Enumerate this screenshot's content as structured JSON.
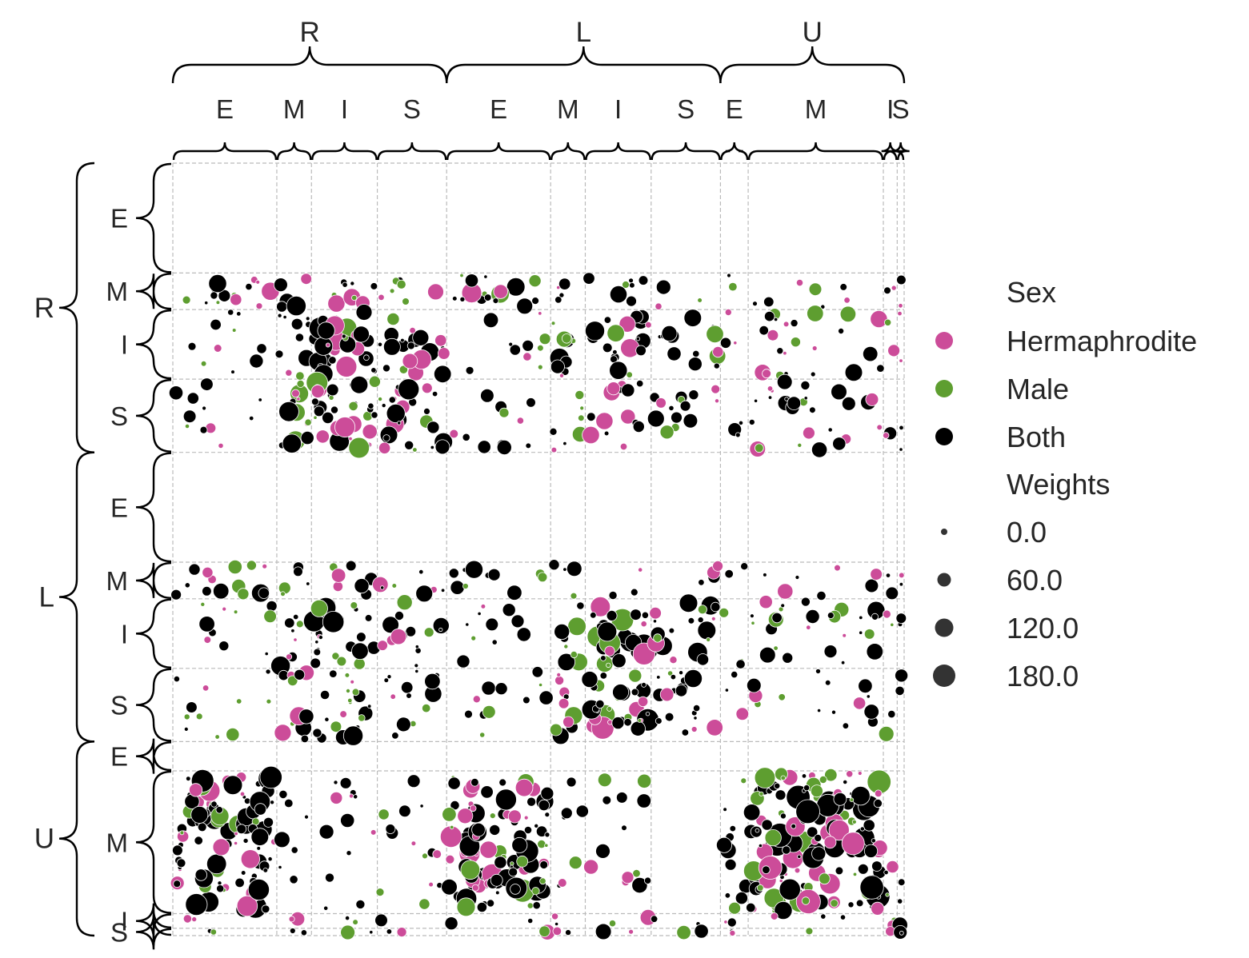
{
  "chart_data": {
    "type": "scatter",
    "title": "",
    "xlabel": "",
    "ylabel": "",
    "grid": true,
    "legend_position": "right",
    "outer_groups": [
      "R",
      "L",
      "U"
    ],
    "inner_groups": [
      "E",
      "M",
      "I",
      "S"
    ],
    "x_blocks": [
      {
        "group": "R",
        "label": "E"
      },
      {
        "group": "R",
        "label": "M"
      },
      {
        "group": "R",
        "label": "I"
      },
      {
        "group": "R",
        "label": "S"
      },
      {
        "group": "L",
        "label": "E"
      },
      {
        "group": "L",
        "label": "M"
      },
      {
        "group": "L",
        "label": "I"
      },
      {
        "group": "L",
        "label": "S"
      },
      {
        "group": "U",
        "label": "E"
      },
      {
        "group": "U",
        "label": "M"
      },
      {
        "group": "U",
        "label": "I"
      },
      {
        "group": "U",
        "label": "S"
      }
    ],
    "y_blocks": [
      {
        "group": "R",
        "label": "E"
      },
      {
        "group": "R",
        "label": "M"
      },
      {
        "group": "R",
        "label": "I"
      },
      {
        "group": "R",
        "label": "S"
      },
      {
        "group": "L",
        "label": "E"
      },
      {
        "group": "L",
        "label": "M"
      },
      {
        "group": "L",
        "label": "I"
      },
      {
        "group": "L",
        "label": "S"
      },
      {
        "group": "U",
        "label": "E"
      },
      {
        "group": "U",
        "label": "M"
      },
      {
        "group": "U",
        "label": "I"
      },
      {
        "group": "U",
        "label": "S"
      }
    ],
    "x_block_widths": [
      30,
      10,
      19,
      20,
      30,
      10,
      19,
      20,
      8,
      39,
      4,
      2
    ],
    "y_block_widths": [
      30,
      10,
      19,
      20,
      30,
      10,
      19,
      20,
      8,
      39,
      4,
      2
    ],
    "density": [
      [
        0,
        0,
        0,
        0,
        0,
        0,
        0,
        0,
        0,
        0,
        0,
        0
      ],
      [
        3,
        3,
        3,
        2,
        3,
        2,
        2,
        1,
        1,
        1,
        1,
        1
      ],
      [
        1,
        3,
        5,
        3,
        1,
        3,
        3,
        2,
        1,
        2,
        1,
        1
      ],
      [
        1,
        4,
        5,
        4,
        1,
        2,
        2,
        2,
        1,
        2,
        1,
        1
      ],
      [
        0,
        0,
        0,
        0,
        0,
        0,
        0,
        0,
        0,
        0,
        0,
        0
      ],
      [
        3,
        3,
        2,
        2,
        2,
        2,
        1,
        1,
        1,
        1,
        1,
        1
      ],
      [
        1,
        3,
        4,
        2,
        1,
        3,
        5,
        3,
        1,
        2,
        1,
        1
      ],
      [
        1,
        3,
        3,
        2,
        1,
        3,
        5,
        3,
        1,
        1,
        1,
        1
      ],
      [
        0,
        0,
        0,
        0,
        0,
        0,
        0,
        0,
        0,
        0,
        0,
        0
      ],
      [
        5,
        1,
        1,
        1,
        5,
        1,
        1,
        0,
        2,
        6,
        1,
        1
      ],
      [
        1,
        1,
        1,
        1,
        1,
        1,
        1,
        1,
        1,
        1,
        1,
        1
      ],
      [
        1,
        1,
        1,
        1,
        1,
        1,
        1,
        1,
        1,
        1,
        1,
        1
      ]
    ],
    "series": [
      {
        "name": "Hermaphrodite",
        "color": "#cc4c99"
      },
      {
        "name": "Male",
        "color": "#5e9e30"
      },
      {
        "name": "Both",
        "color": "#000000"
      }
    ],
    "size_legend_values": [
      0.0,
      60.0,
      120.0,
      180.0
    ]
  },
  "legend": {
    "sex_title": "Sex",
    "weights_title": "Weights",
    "size_labels": [
      "0.0",
      "60.0",
      "120.0",
      "180.0"
    ],
    "marker_color": "#333333"
  },
  "colors": {
    "grid": "#bbbbbb",
    "brace": "#000000",
    "text": "#262626"
  }
}
